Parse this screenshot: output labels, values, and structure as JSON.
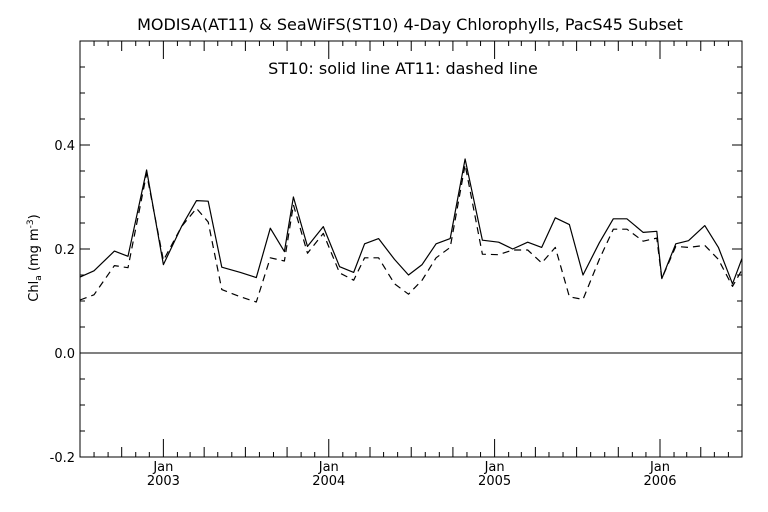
{
  "chart_data": {
    "type": "line",
    "title": "MODISA(AT11) & SeaWiFS(ST10) 4-Day Chlorophylls, PacS45 Subset",
    "annotation": "ST10: solid line   AT11: dashed line",
    "ylabel_main": "Chl",
    "ylabel_sub": "a",
    "ylabel_unit": "(mg m",
    "ylabel_exp": "-3",
    "ylabel_close": ")",
    "ylim": [
      -0.2,
      0.6
    ],
    "yticks": [
      {
        "value": -0.2,
        "label": "-0.2"
      },
      {
        "value": 0.0,
        "label": "0.0"
      },
      {
        "value": 0.2,
        "label": "0.2"
      },
      {
        "value": 0.4,
        "label": "0.4"
      }
    ],
    "xlim": [
      "2002-07-01",
      "2006-07-01"
    ],
    "xticks": [
      {
        "date": "2003-01-01",
        "month": "Jan",
        "year": "2003"
      },
      {
        "date": "2004-01-01",
        "month": "Jan",
        "year": "2004"
      },
      {
        "date": "2005-01-01",
        "month": "Jan",
        "year": "2005"
      },
      {
        "date": "2006-01-01",
        "month": "Jan",
        "year": "2006"
      }
    ],
    "zero_line": true,
    "grid": false,
    "series": [
      {
        "name": "ST10",
        "style": "solid",
        "points": [
          [
            "2002-07-01",
            0.146
          ],
          [
            "2002-08-01",
            0.158
          ],
          [
            "2002-09-15",
            0.196
          ],
          [
            "2002-10-15",
            0.186
          ],
          [
            "2002-11-25",
            0.352
          ],
          [
            "2003-01-01",
            0.17
          ],
          [
            "2003-02-10",
            0.243
          ],
          [
            "2003-03-15",
            0.293
          ],
          [
            "2003-04-10",
            0.292
          ],
          [
            "2003-05-10",
            0.165
          ],
          [
            "2003-06-20",
            0.155
          ],
          [
            "2003-07-25",
            0.145
          ],
          [
            "2003-08-25",
            0.24
          ],
          [
            "2003-09-25",
            0.195
          ],
          [
            "2003-10-15",
            0.3
          ],
          [
            "2003-11-15",
            0.205
          ],
          [
            "2003-12-20",
            0.243
          ],
          [
            "2004-01-25",
            0.166
          ],
          [
            "2004-02-25",
            0.155
          ],
          [
            "2004-03-20",
            0.21
          ],
          [
            "2004-04-20",
            0.22
          ],
          [
            "2004-05-25",
            0.18
          ],
          [
            "2004-06-25",
            0.15
          ],
          [
            "2004-07-25",
            0.17
          ],
          [
            "2004-08-25",
            0.21
          ],
          [
            "2004-09-25",
            0.22
          ],
          [
            "2004-10-28",
            0.373
          ],
          [
            "2004-12-05",
            0.217
          ],
          [
            "2005-01-10",
            0.213
          ],
          [
            "2005-02-10",
            0.2
          ],
          [
            "2005-03-15",
            0.213
          ],
          [
            "2005-04-15",
            0.203
          ],
          [
            "2005-05-15",
            0.26
          ],
          [
            "2005-06-15",
            0.247
          ],
          [
            "2005-07-15",
            0.15
          ],
          [
            "2005-08-20",
            0.212
          ],
          [
            "2005-09-20",
            0.258
          ],
          [
            "2005-10-20",
            0.258
          ],
          [
            "2005-11-25",
            0.232
          ],
          [
            "2005-12-25",
            0.234
          ],
          [
            "2006-01-05",
            0.143
          ],
          [
            "2006-02-05",
            0.21
          ],
          [
            "2006-03-05",
            0.216
          ],
          [
            "2006-04-10",
            0.245
          ],
          [
            "2006-05-10",
            0.203
          ],
          [
            "2006-06-10",
            0.133
          ],
          [
            "2006-07-01",
            0.182
          ]
        ]
      },
      {
        "name": "AT11",
        "style": "dashed",
        "points": [
          [
            "2002-07-01",
            0.102
          ],
          [
            "2002-08-01",
            0.112
          ],
          [
            "2002-09-15",
            0.168
          ],
          [
            "2002-10-15",
            0.164
          ],
          [
            "2002-11-25",
            0.345
          ],
          [
            "2003-01-01",
            0.178
          ],
          [
            "2003-02-10",
            0.243
          ],
          [
            "2003-03-15",
            0.278
          ],
          [
            "2003-04-10",
            0.252
          ],
          [
            "2003-05-10",
            0.122
          ],
          [
            "2003-06-20",
            0.108
          ],
          [
            "2003-07-25",
            0.098
          ],
          [
            "2003-08-25",
            0.183
          ],
          [
            "2003-09-25",
            0.177
          ],
          [
            "2003-10-15",
            0.285
          ],
          [
            "2003-11-15",
            0.192
          ],
          [
            "2003-12-20",
            0.23
          ],
          [
            "2004-01-25",
            0.154
          ],
          [
            "2004-02-25",
            0.14
          ],
          [
            "2004-03-20",
            0.183
          ],
          [
            "2004-04-20",
            0.183
          ],
          [
            "2004-05-25",
            0.133
          ],
          [
            "2004-06-25",
            0.113
          ],
          [
            "2004-07-25",
            0.14
          ],
          [
            "2004-08-25",
            0.183
          ],
          [
            "2004-09-25",
            0.203
          ],
          [
            "2004-10-28",
            0.362
          ],
          [
            "2004-12-05",
            0.19
          ],
          [
            "2005-01-10",
            0.189
          ],
          [
            "2005-02-10",
            0.198
          ],
          [
            "2005-03-15",
            0.198
          ],
          [
            "2005-04-15",
            0.173
          ],
          [
            "2005-05-15",
            0.203
          ],
          [
            "2005-06-15",
            0.108
          ],
          [
            "2005-07-15",
            0.103
          ],
          [
            "2005-08-20",
            0.18
          ],
          [
            "2005-09-20",
            0.238
          ],
          [
            "2005-10-20",
            0.238
          ],
          [
            "2005-11-25",
            0.215
          ],
          [
            "2005-12-25",
            0.221
          ],
          [
            "2006-01-05",
            0.143
          ],
          [
            "2006-02-05",
            0.205
          ],
          [
            "2006-03-05",
            0.203
          ],
          [
            "2006-04-10",
            0.207
          ],
          [
            "2006-05-10",
            0.18
          ],
          [
            "2006-06-10",
            0.128
          ],
          [
            "2006-07-01",
            0.16
          ]
        ]
      }
    ]
  }
}
